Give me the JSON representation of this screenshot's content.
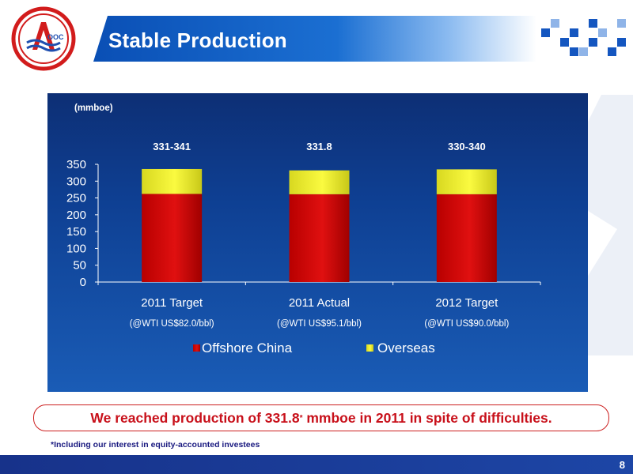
{
  "slide": {
    "title": "Stable Production",
    "page_number": "8",
    "conclusion_main": "We reached production of 331.8",
    "conclusion_mark": "*",
    "conclusion_rest": " mmboe in 2011 in spite of difficulties.",
    "footnote": "*Including our interest in equity-accounted investees"
  },
  "colors": {
    "offshore_china": "#cc0000",
    "overseas": "#f2f22a",
    "title_bar": "#0a4fb5",
    "conclusion_text": "#c8101a",
    "panel_top": "#0d2f75",
    "panel_bottom": "#1a5cb6"
  },
  "chart_data": {
    "type": "bar",
    "stacked": true,
    "unit_label": "(mmboe)",
    "categories": [
      "2011 Target",
      "2011 Actual",
      "2012 Target"
    ],
    "category_sublabels": [
      "(@WTI US$82.0/bbl)",
      "(@WTI US$95.1/bbl)",
      "(@WTI US$90.0/bbl)"
    ],
    "total_labels": [
      "331-341",
      "331.8",
      "330-340"
    ],
    "series": [
      {
        "name": "Offshore China",
        "values": [
          262,
          261,
          261
        ]
      },
      {
        "name": "Overseas",
        "values": [
          74,
          71,
          74
        ]
      }
    ],
    "ylim": [
      0,
      350
    ],
    "yticks": [
      0,
      50,
      100,
      150,
      200,
      250,
      300,
      350
    ],
    "legend_position": "bottom",
    "grid": false
  }
}
